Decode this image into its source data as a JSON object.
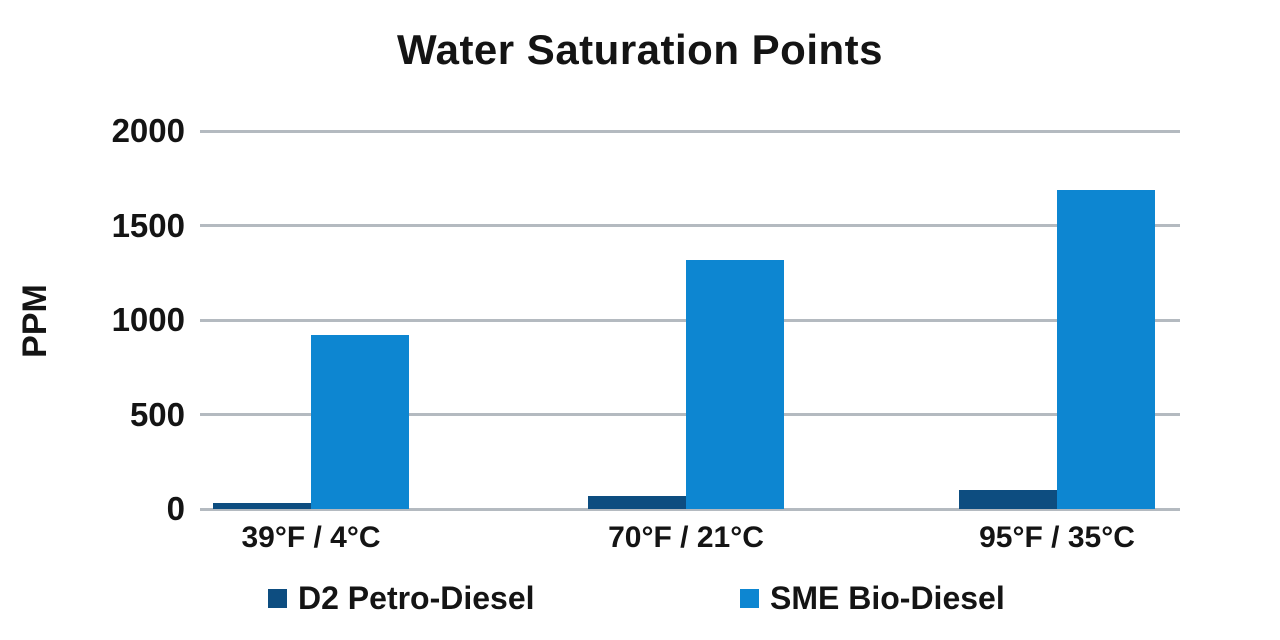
{
  "title": "Water Saturation Points",
  "y_axis": {
    "label": "PPM",
    "ticks": [
      "0",
      "500",
      "1000",
      "1500",
      "2000"
    ]
  },
  "chart_data": {
    "type": "bar",
    "title": "Water Saturation Points",
    "xlabel": "",
    "ylabel": "PPM",
    "categories": [
      "39°F / 4°C",
      "70°F / 21°C",
      "95°F / 35°C"
    ],
    "series": [
      {
        "name": "D2 Petro-Diesel",
        "color": "#0d4d80",
        "values": [
          30,
          70,
          100
        ]
      },
      {
        "name": "SME Bio-Diesel",
        "color": "#0d86d1",
        "values": [
          920,
          1320,
          1690
        ]
      }
    ],
    "ylim": [
      0,
      2000
    ],
    "ytick_step": 500,
    "grid": true,
    "legend_position": "bottom"
  },
  "colors": {
    "gridline": "#b4bac0",
    "text": "#141414",
    "background": "#ffffff"
  }
}
